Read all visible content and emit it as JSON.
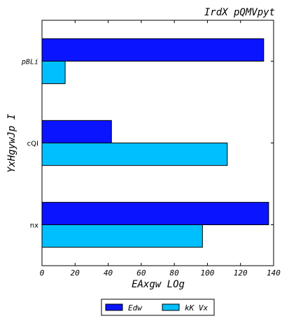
{
  "chart_data": {
    "type": "bar",
    "orientation": "horizontal",
    "title": "IrdX pQMVpyt",
    "xlabel": "EAxgw LOg",
    "ylabel": "YxHgywJp  I",
    "categories": [
      "nx",
      "cQI",
      "pBLi"
    ],
    "xlim": [
      0,
      140
    ],
    "x_ticks": [
      0,
      20,
      40,
      60,
      80,
      100,
      120,
      140
    ],
    "grid": false,
    "legend_position": "bottom-center",
    "series": [
      {
        "name": "Edw",
        "color": "#0a14ff",
        "values": [
          137,
          42,
          134
        ]
      },
      {
        "name": "kK Vx",
        "color": "#00bfff",
        "values": [
          97,
          112,
          14
        ]
      }
    ]
  }
}
